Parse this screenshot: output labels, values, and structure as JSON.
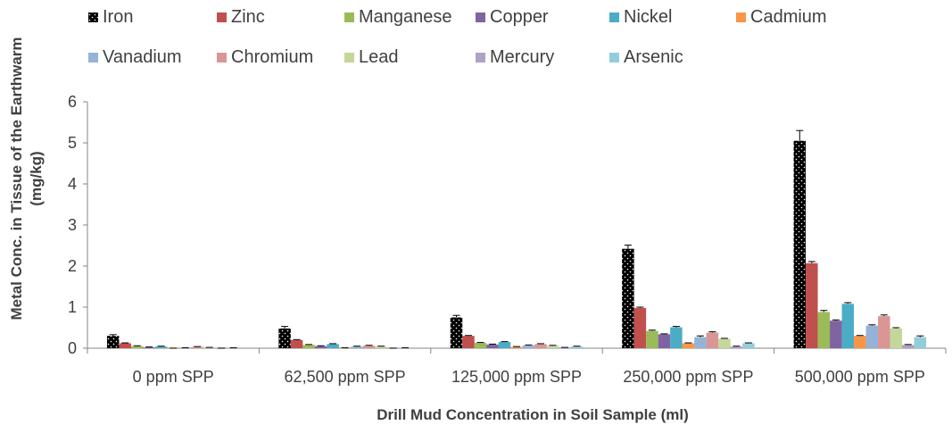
{
  "chart_data": {
    "type": "bar",
    "title": "",
    "xlabel": "Drill Mud Concentration in Soil Sample (ml)",
    "ylabel_line1": "Metal Conc. in Tissue of the Earthwarm",
    "ylabel_line2": "(mg/kg)",
    "ylim": [
      0,
      6
    ],
    "yticks": [
      "0",
      "1",
      "2",
      "3",
      "4",
      "5",
      "6"
    ],
    "grid": false,
    "legend_position": "top",
    "categories": [
      "0 ppm SPP",
      "62,500 ppm  SPP",
      "125,000 ppm SPP",
      "250,000 ppm SPP",
      "500,000 ppm SPP"
    ],
    "series": [
      {
        "name": "Iron",
        "color": "#000000",
        "pattern": "dots",
        "values": [
          0.3,
          0.48,
          0.75,
          2.42,
          5.05
        ],
        "errors": [
          0.03,
          0.05,
          0.05,
          0.09,
          0.25
        ]
      },
      {
        "name": "Zinc",
        "color": "#c0504d",
        "values": [
          0.12,
          0.2,
          0.3,
          0.98,
          2.07
        ],
        "errors": [
          0.01,
          0.01,
          0.01,
          0.02,
          0.04
        ]
      },
      {
        "name": "Manganese",
        "color": "#9bbb59",
        "values": [
          0.05,
          0.08,
          0.13,
          0.42,
          0.88
        ],
        "errors": [
          0.01,
          0.01,
          0.01,
          0.02,
          0.04
        ]
      },
      {
        "name": "Copper",
        "color": "#8064a2",
        "values": [
          0.02,
          0.05,
          0.09,
          0.34,
          0.67
        ],
        "errors": [
          0.01,
          0.01,
          0.01,
          0.01,
          0.02
        ]
      },
      {
        "name": "Nickel",
        "color": "#4bacc6",
        "values": [
          0.04,
          0.1,
          0.15,
          0.51,
          1.08
        ],
        "errors": [
          0.01,
          0.01,
          0.01,
          0.02,
          0.03
        ]
      },
      {
        "name": "Cadmium",
        "color": "#f79646",
        "values": [
          0.0,
          0.01,
          0.03,
          0.12,
          0.3
        ],
        "errors": [
          0.0,
          0.0,
          0.01,
          0.01,
          0.01
        ]
      },
      {
        "name": "Vanadium",
        "color": "#95b3d7",
        "values": [
          0.01,
          0.04,
          0.07,
          0.27,
          0.55
        ],
        "errors": [
          0.0,
          0.01,
          0.01,
          0.03,
          0.02
        ]
      },
      {
        "name": "Chromium",
        "color": "#da9694",
        "values": [
          0.03,
          0.06,
          0.1,
          0.38,
          0.78
        ],
        "errors": [
          0.01,
          0.01,
          0.01,
          0.02,
          0.03
        ]
      },
      {
        "name": "Lead",
        "color": "#c4d79b",
        "values": [
          0.02,
          0.04,
          0.06,
          0.23,
          0.48
        ],
        "errors": [
          0.0,
          0.01,
          0.01,
          0.01,
          0.02
        ]
      },
      {
        "name": "Mercury",
        "color": "#b1a0c7",
        "values": [
          0.0,
          0.0,
          0.02,
          0.04,
          0.08
        ],
        "errors": [
          0.0,
          0.0,
          0.0,
          0.01,
          0.01
        ]
      },
      {
        "name": "Arsenic",
        "color": "#92cddc",
        "values": [
          0.01,
          0.01,
          0.04,
          0.12,
          0.27
        ],
        "errors": [
          0.0,
          0.0,
          0.01,
          0.01,
          0.03
        ]
      }
    ]
  }
}
